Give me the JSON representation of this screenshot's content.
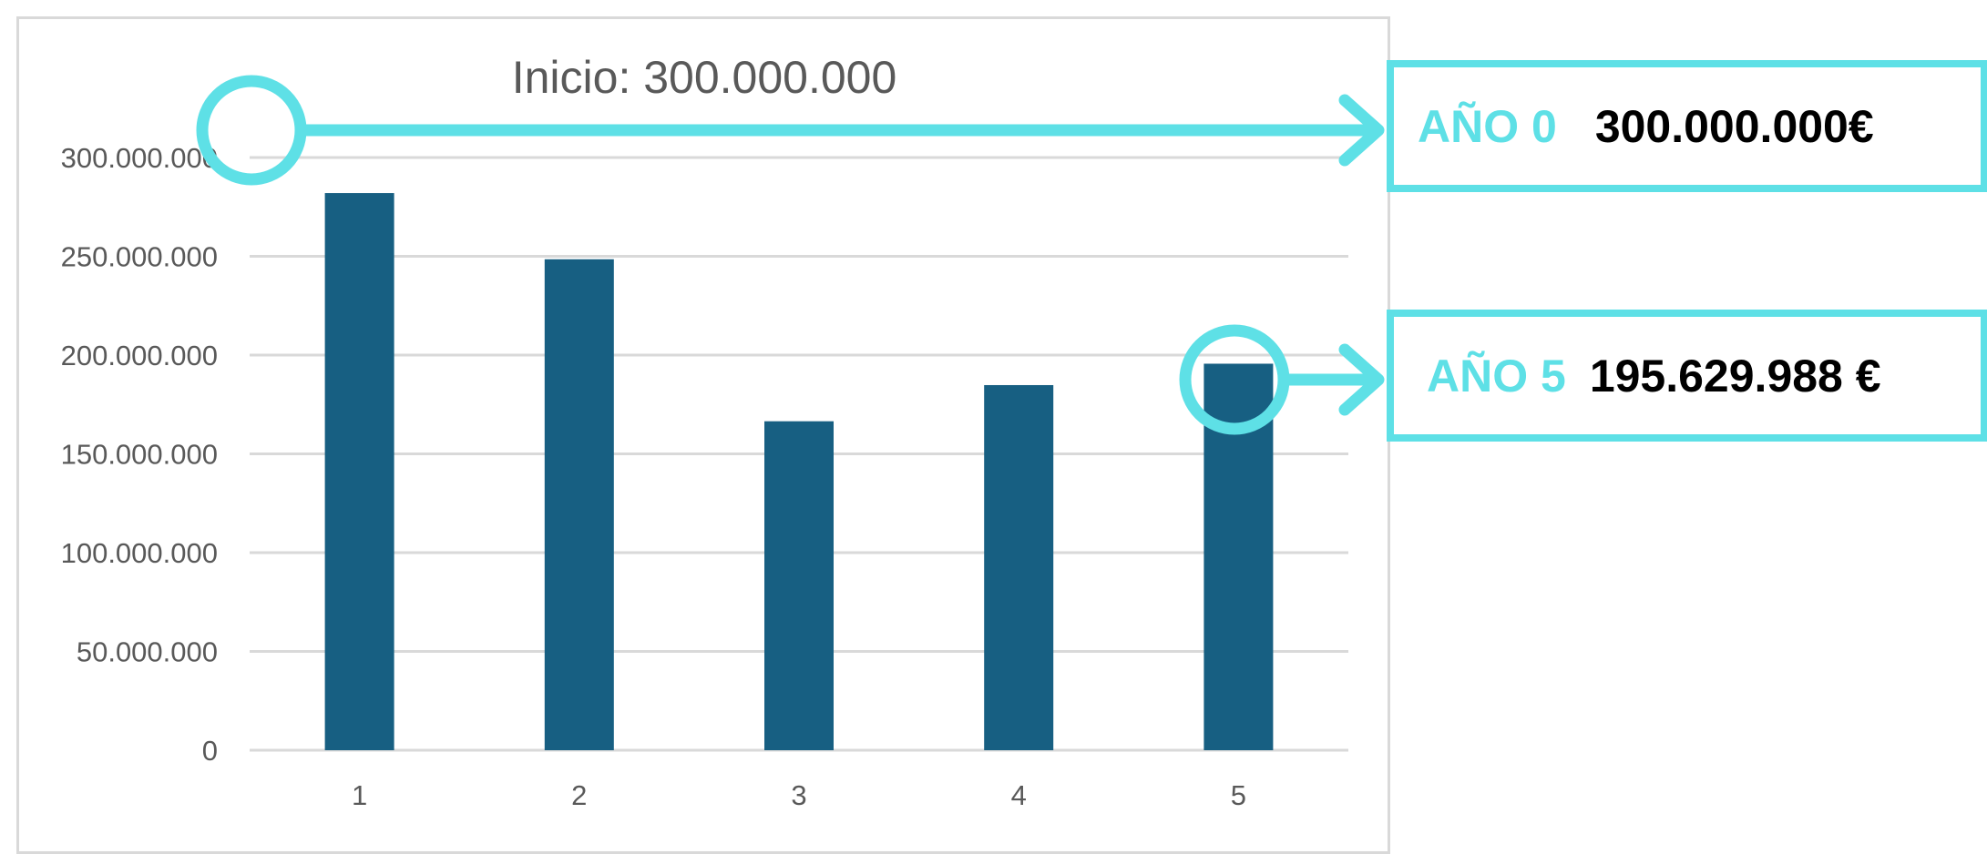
{
  "colors": {
    "bar": "#175f82",
    "accent": "#5ee0e6",
    "grid": "#d9d9d9",
    "axis_text": "#595959",
    "title_text": "#595959"
  },
  "chart_data": {
    "type": "bar",
    "title": "Inicio: 300.000.000",
    "xlabel": "",
    "ylabel": "",
    "categories": [
      "1",
      "2",
      "3",
      "4",
      "5"
    ],
    "values": [
      282000000,
      248500000,
      166500000,
      184800000,
      195629988
    ],
    "ylim": [
      0,
      300000000
    ],
    "yticks": [
      0,
      50000000,
      100000000,
      150000000,
      200000000,
      250000000,
      300000000
    ],
    "ytick_labels": [
      "0",
      "50.000.000",
      "100.000.000",
      "150.000.000",
      "200.000.000",
      "250.000.000",
      "300.000.000"
    ],
    "grid": true,
    "legend": "none"
  },
  "callouts": [
    {
      "year_label": "AÑO 0",
      "value_label": "300.000.000€"
    },
    {
      "year_label": "AÑO 5",
      "value_label": "195.629.988 €"
    }
  ]
}
